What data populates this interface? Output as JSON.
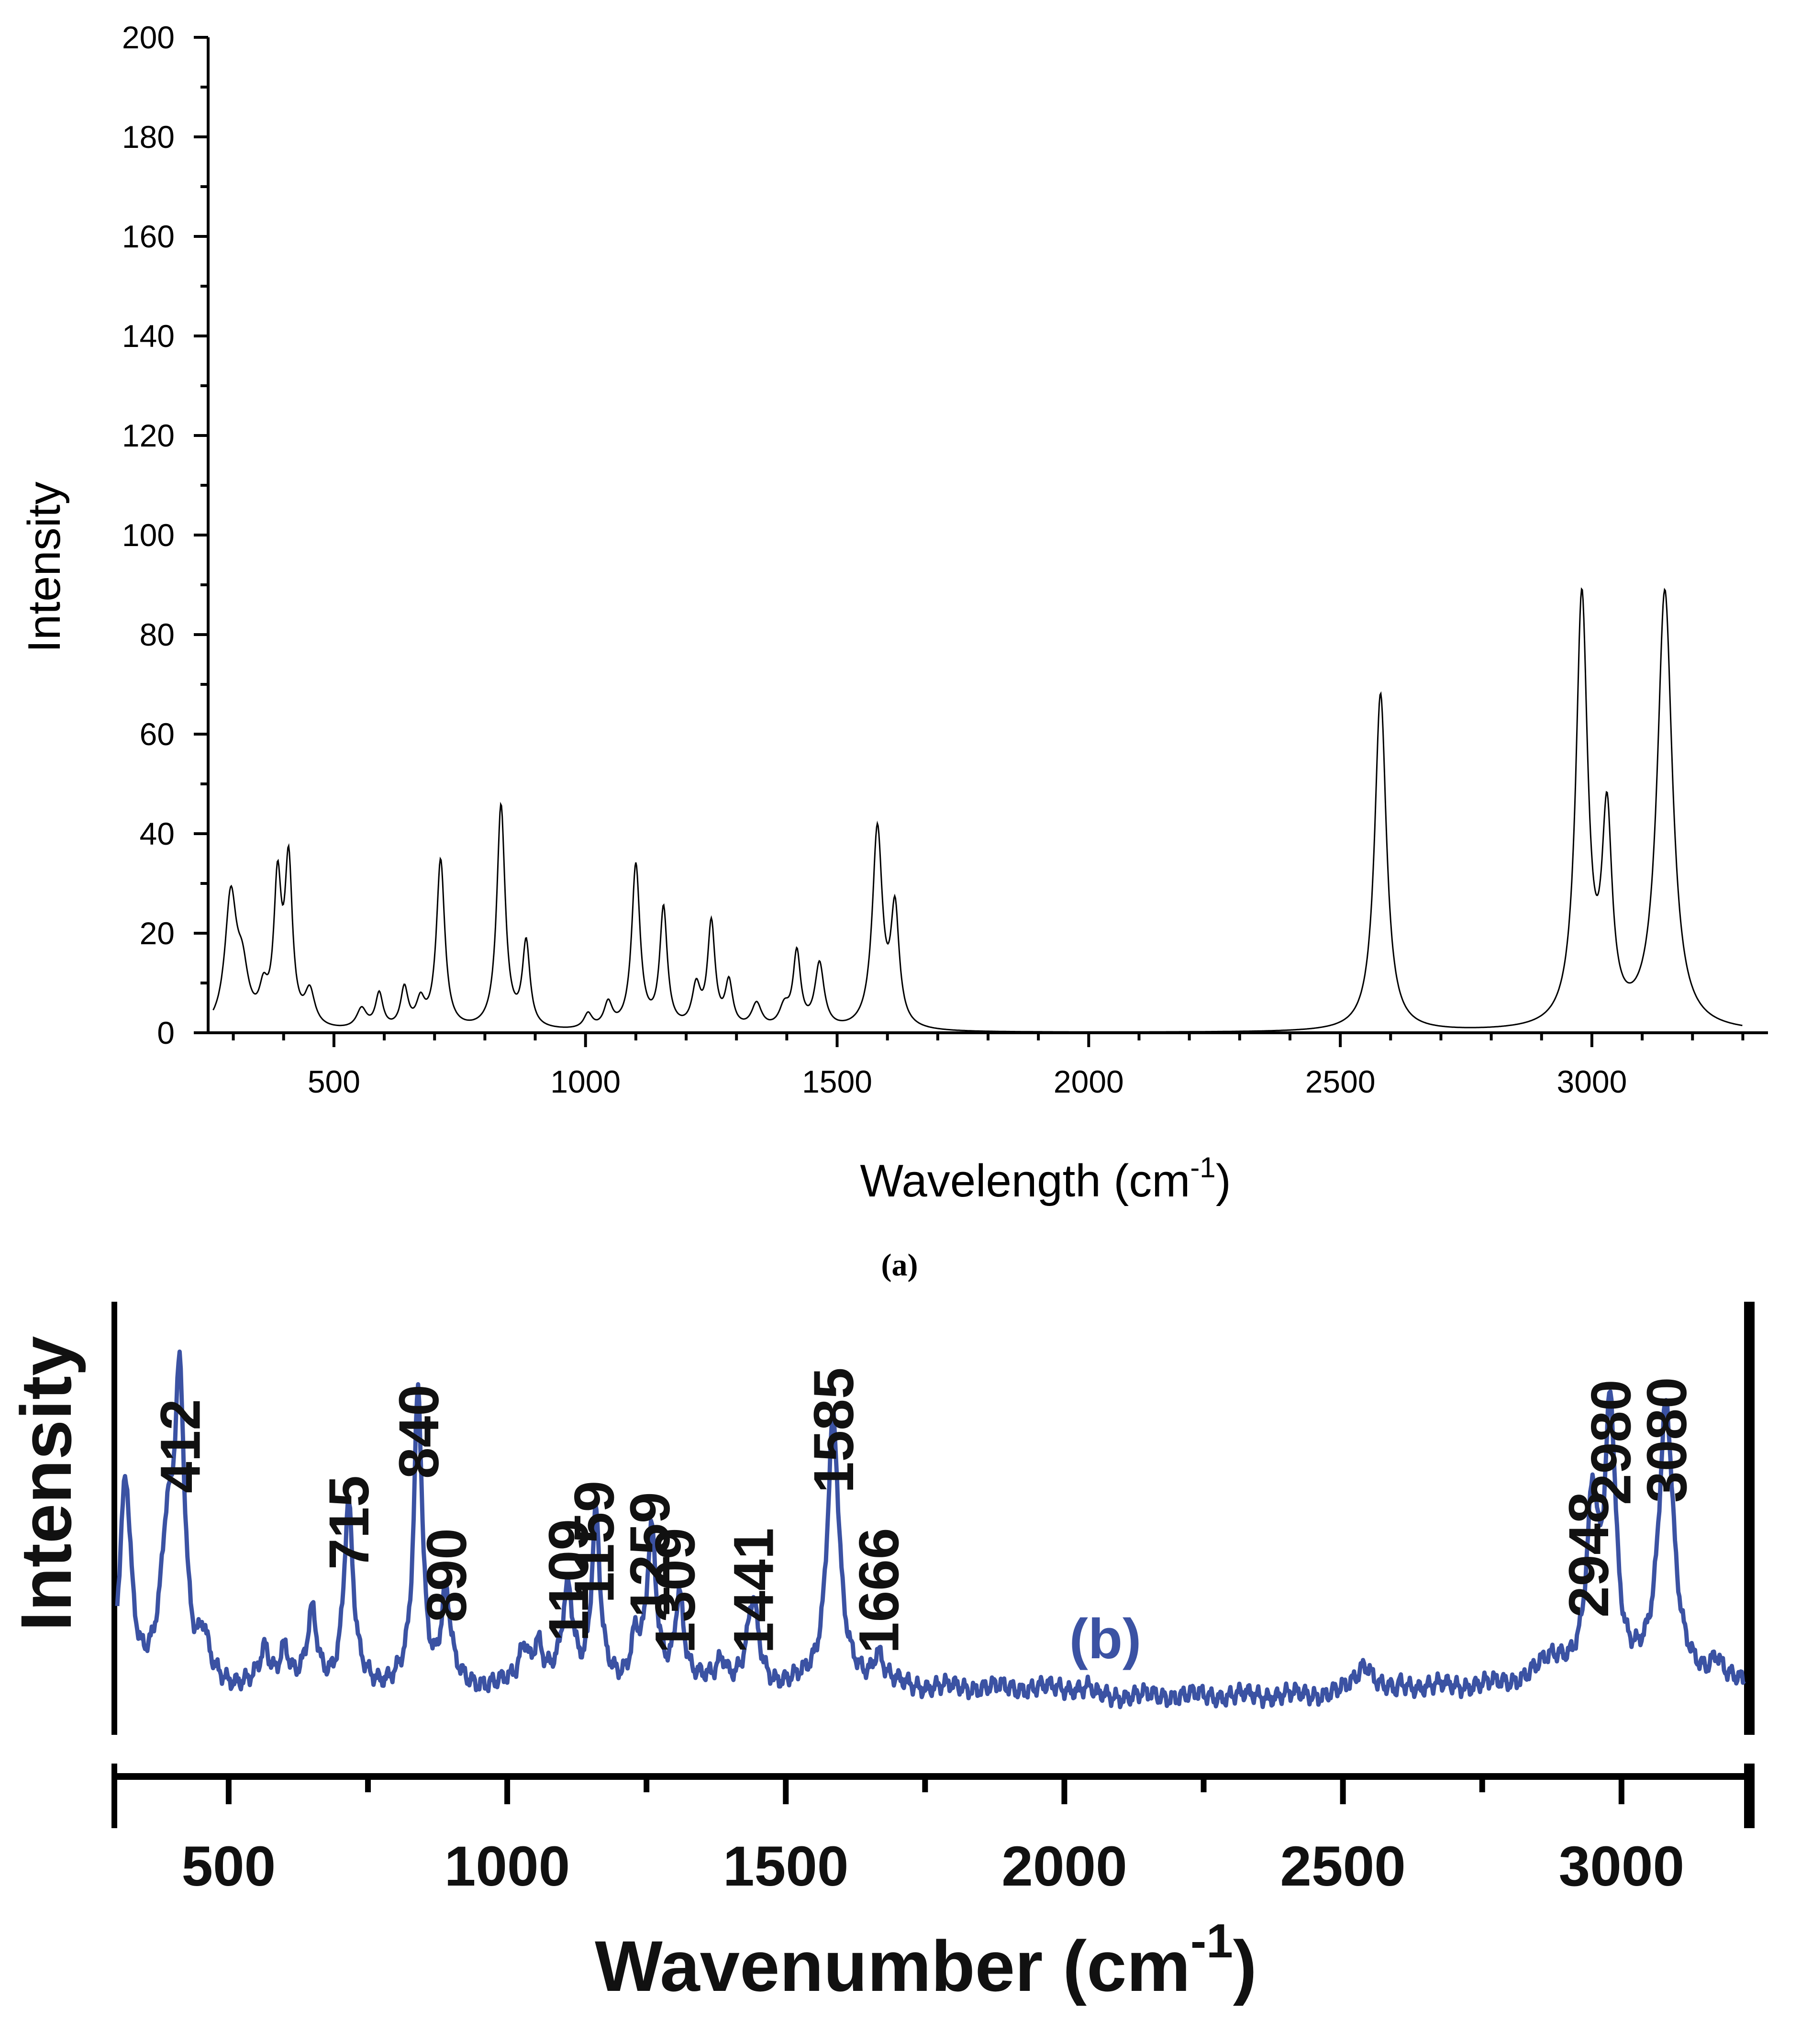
{
  "panel_labels": [
    "(a)"
  ],
  "colors": {
    "panel_a_line": "#000000",
    "panel_b_line": "#3b52a3"
  },
  "chart_data": [
    {
      "id": "a",
      "type": "line",
      "title": "",
      "xlabel": "Wavelength (cm",
      "xlabel_sup": "-1",
      "xlabel_close": ")",
      "ylabel": "Intensity",
      "xlim": [
        250,
        3350
      ],
      "ylim": [
        0,
        200
      ],
      "xticks": [
        500,
        1000,
        1500,
        2000,
        2500,
        3000
      ],
      "yticks": [
        0,
        20,
        40,
        60,
        80,
        100,
        120,
        140,
        160,
        180,
        200
      ],
      "baseline": 0,
      "peaks": [
        {
          "x": 295,
          "y": 26,
          "w": 14
        },
        {
          "x": 318,
          "y": 10,
          "w": 14
        },
        {
          "x": 360,
          "y": 6,
          "w": 10
        },
        {
          "x": 388,
          "y": 28,
          "w": 9
        },
        {
          "x": 410,
          "y": 32,
          "w": 9
        },
        {
          "x": 452,
          "y": 7,
          "w": 12
        },
        {
          "x": 555,
          "y": 4,
          "w": 12
        },
        {
          "x": 590,
          "y": 7,
          "w": 9
        },
        {
          "x": 640,
          "y": 8,
          "w": 9
        },
        {
          "x": 672,
          "y": 5,
          "w": 10
        },
        {
          "x": 712,
          "y": 34,
          "w": 10
        },
        {
          "x": 832,
          "y": 45,
          "w": 10
        },
        {
          "x": 882,
          "y": 17,
          "w": 9
        },
        {
          "x": 1005,
          "y": 3,
          "w": 10
        },
        {
          "x": 1045,
          "y": 5,
          "w": 10
        },
        {
          "x": 1100,
          "y": 33,
          "w": 10
        },
        {
          "x": 1155,
          "y": 24,
          "w": 9
        },
        {
          "x": 1220,
          "y": 8,
          "w": 10
        },
        {
          "x": 1250,
          "y": 21,
          "w": 9
        },
        {
          "x": 1285,
          "y": 9,
          "w": 9
        },
        {
          "x": 1340,
          "y": 5,
          "w": 12
        },
        {
          "x": 1395,
          "y": 4,
          "w": 12
        },
        {
          "x": 1420,
          "y": 15,
          "w": 9
        },
        {
          "x": 1465,
          "y": 13,
          "w": 11
        },
        {
          "x": 1580,
          "y": 40,
          "w": 12
        },
        {
          "x": 1615,
          "y": 23,
          "w": 10
        },
        {
          "x": 2580,
          "y": 68,
          "w": 14
        },
        {
          "x": 2980,
          "y": 86,
          "w": 14
        },
        {
          "x": 3030,
          "y": 40,
          "w": 12
        },
        {
          "x": 3145,
          "y": 88,
          "w": 18
        }
      ]
    },
    {
      "id": "b",
      "type": "line",
      "title": "",
      "series_label": "(b)",
      "xlabel": "Wavenumber (cm",
      "xlabel_sup": "-1",
      "xlabel_close": ")",
      "ylabel": "Intensity",
      "xlim": [
        300,
        3220
      ],
      "ylim": [
        0,
        100
      ],
      "xticks": [
        500,
        1000,
        1500,
        2000,
        2500,
        3000
      ],
      "minor_xticks": [
        750,
        1250,
        1750,
        2250,
        2750
      ],
      "peak_labels": [
        "412",
        "715",
        "840",
        "890",
        "1109",
        "1159",
        "1259",
        "1309",
        "1441",
        "1585",
        "1666",
        "2948",
        "2980",
        "3080"
      ],
      "peaks": [
        {
          "x": 315,
          "y": 32,
          "w": 12
        },
        {
          "x": 390,
          "y": 20,
          "w": 14
        },
        {
          "x": 412,
          "y": 45,
          "w": 11
        },
        {
          "x": 455,
          "y": 6,
          "w": 10
        },
        {
          "x": 565,
          "y": 5,
          "w": 10
        },
        {
          "x": 600,
          "y": 6,
          "w": 10
        },
        {
          "x": 650,
          "y": 11,
          "w": 10
        },
        {
          "x": 715,
          "y": 28,
          "w": 10
        },
        {
          "x": 840,
          "y": 46,
          "w": 9
        },
        {
          "x": 890,
          "y": 14,
          "w": 10
        },
        {
          "x": 1030,
          "y": 6,
          "w": 10
        },
        {
          "x": 1055,
          "y": 6,
          "w": 10
        },
        {
          "x": 1109,
          "y": 15,
          "w": 12
        },
        {
          "x": 1159,
          "y": 26,
          "w": 9
        },
        {
          "x": 1230,
          "y": 7,
          "w": 10
        },
        {
          "x": 1259,
          "y": 23,
          "w": 10
        },
        {
          "x": 1309,
          "y": 14,
          "w": 10
        },
        {
          "x": 1385,
          "y": 4,
          "w": 12
        },
        {
          "x": 1441,
          "y": 13,
          "w": 12
        },
        {
          "x": 1585,
          "y": 42,
          "w": 13
        },
        {
          "x": 1666,
          "y": 5,
          "w": 12
        },
        {
          "x": 2540,
          "y": 5,
          "w": 20
        },
        {
          "x": 2880,
          "y": 4,
          "w": 40
        },
        {
          "x": 2948,
          "y": 26,
          "w": 12
        },
        {
          "x": 2980,
          "y": 42,
          "w": 12
        },
        {
          "x": 3080,
          "y": 44,
          "w": 16
        },
        {
          "x": 3170,
          "y": 4,
          "w": 14
        }
      ]
    }
  ]
}
